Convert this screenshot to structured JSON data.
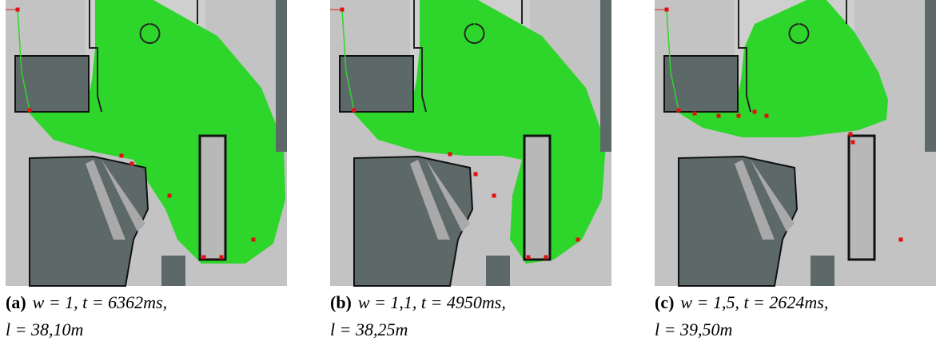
{
  "figures": [
    {
      "label": "(a)",
      "caption_lines": [
        "w = 1, t = 6362ms,",
        "l = 38,10m"
      ]
    },
    {
      "label": "(b)",
      "caption_lines": [
        "w = 1,1, t = 4950ms,",
        "l = 38,25m"
      ]
    },
    {
      "label": "(c)",
      "caption_lines": [
        "w = 1,5, t = 2624ms,",
        "l = 39,50m"
      ]
    }
  ]
}
